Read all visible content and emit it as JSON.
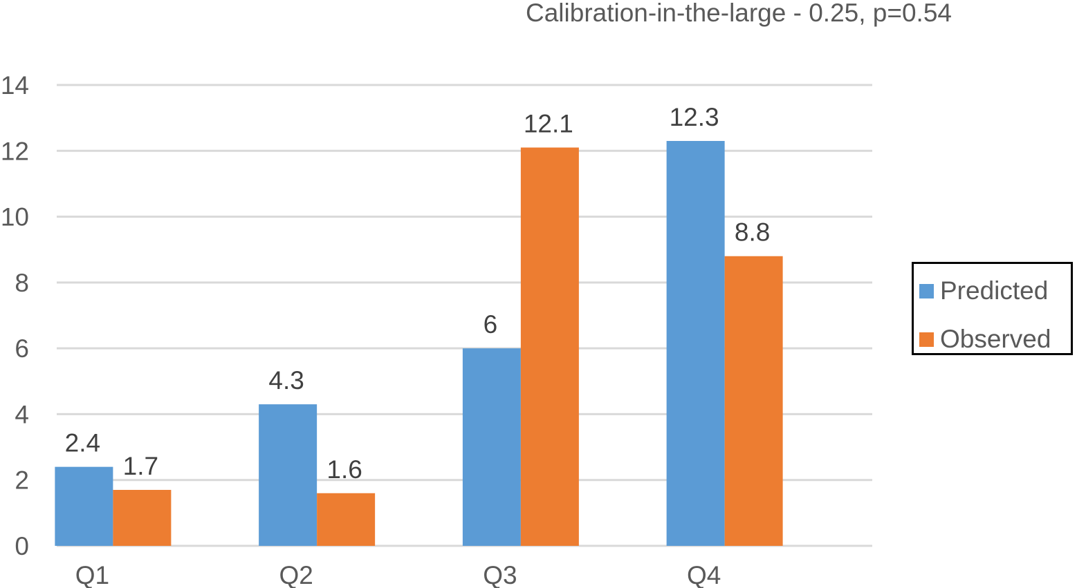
{
  "chart_data": {
    "type": "bar",
    "title": "",
    "subtitle": "Calibration-in-the-large - 0.25, p=0.54",
    "xlabel": "",
    "ylabel": "",
    "categories": [
      "Q1",
      "Q2",
      "Q3",
      "Q4"
    ],
    "series": [
      {
        "name": "Predicted",
        "color": "#5b9bd5",
        "values": [
          2.4,
          4.3,
          6,
          12.3
        ],
        "labels": [
          "2.4",
          "4.3",
          "6",
          "12.3"
        ]
      },
      {
        "name": "Observed",
        "color": "#ed7d31",
        "values": [
          1.7,
          1.6,
          12.1,
          8.8
        ],
        "labels": [
          "1.7",
          "1.6",
          "12.1",
          "8.8"
        ]
      }
    ],
    "ylim": [
      0,
      14
    ],
    "yticks": [
      0,
      2,
      4,
      6,
      8,
      10,
      12,
      14
    ],
    "grid": true,
    "legend_position": "right"
  }
}
